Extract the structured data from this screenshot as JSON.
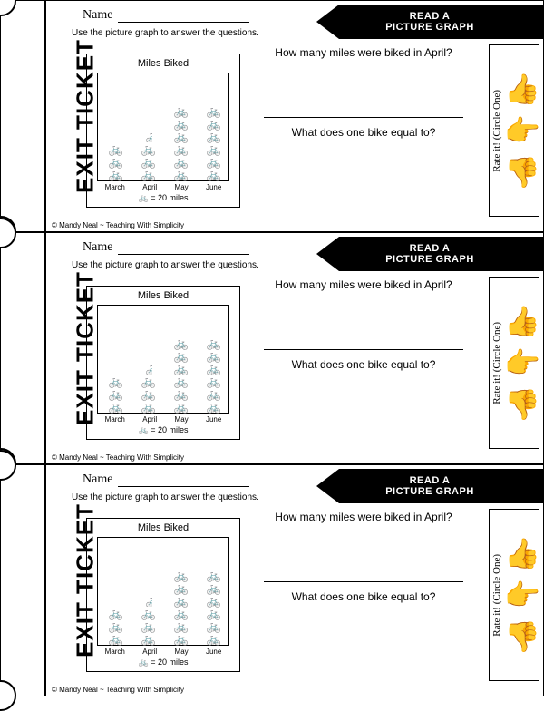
{
  "ticket": {
    "exit_label": "EXIT TICKET",
    "name_label": "Name",
    "instruction": "Use the picture graph to answer the questions.",
    "banner_line1": "READ A",
    "banner_line2": "PICTURE GRAPH",
    "question1": "How many miles were biked in April?",
    "question2": "What does one bike equal to?",
    "rate_label": "Rate it! (Circle One)",
    "credit": "© Mandy Neal ~ Teaching With Simplicity"
  },
  "graph": {
    "title": "Miles Biked",
    "columns": [
      {
        "label": "March",
        "full": 3,
        "half": 0
      },
      {
        "label": "April",
        "full": 3,
        "half": 1
      },
      {
        "label": "May",
        "full": 6,
        "half": 0
      },
      {
        "label": "June",
        "full": 6,
        "half": 0
      }
    ],
    "legend_symbol": "🚲",
    "legend_text": "= 20 miles",
    "bike_glyph": "🚲"
  },
  "thumbs": {
    "up": "👍",
    "side": "👉",
    "down": "👎"
  },
  "repeat_count": 3
}
